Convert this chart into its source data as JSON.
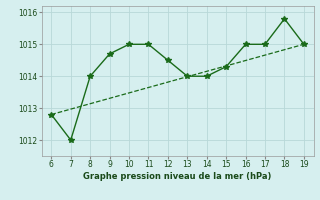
{
  "x": [
    6,
    7,
    8,
    9,
    10,
    11,
    12,
    13,
    14,
    15,
    16,
    17,
    18,
    19
  ],
  "y": [
    1012.8,
    1012.0,
    1014.0,
    1014.7,
    1015.0,
    1015.0,
    1014.5,
    1014.0,
    1014.0,
    1014.3,
    1015.0,
    1015.0,
    1015.8,
    1015.0
  ],
  "trend_x": [
    6,
    19
  ],
  "trend_y": [
    1012.8,
    1015.0
  ],
  "line_color": "#1a6b1a",
  "xlabel": "Graphe pression niveau de la mer (hPa)",
  "xlim": [
    5.5,
    19.5
  ],
  "ylim": [
    1011.5,
    1016.2
  ],
  "yticks": [
    1012,
    1013,
    1014,
    1015,
    1016
  ],
  "xticks": [
    6,
    7,
    8,
    9,
    10,
    11,
    12,
    13,
    14,
    15,
    16,
    17,
    18,
    19
  ],
  "bg_color": "#d6efef",
  "grid_color": "#b8d8d8"
}
